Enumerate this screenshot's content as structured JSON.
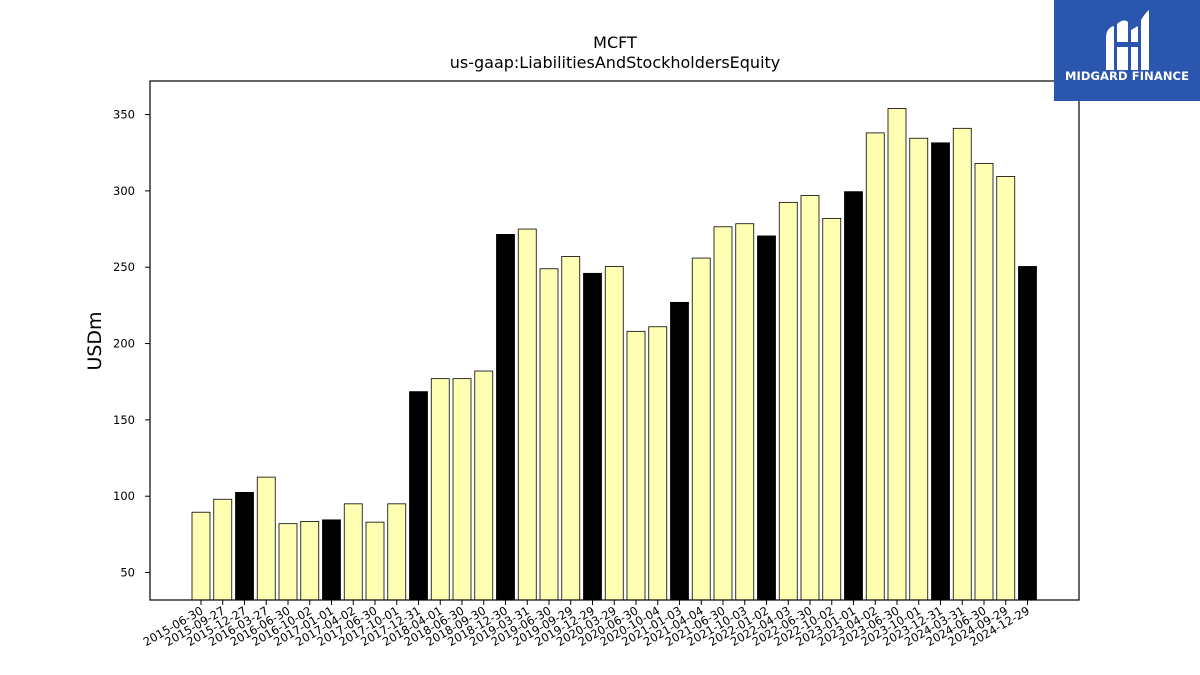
{
  "chart_data": {
    "type": "bar",
    "title": "MCFT",
    "subtitle": "us-gaap:LiabilitiesAndStockholdersEquity",
    "xlabel": "",
    "ylabel": "USDm",
    "ylim": [
      32,
      372
    ],
    "yticks": [
      50,
      100,
      150,
      200,
      250,
      300,
      350
    ],
    "grid": false,
    "colors": {
      "quarter": "#ffffb3",
      "year_end": "#000000",
      "edge": "#000000"
    },
    "categories": [
      "2015-06-30",
      "2015-09-27",
      "2015-12-27",
      "2016-03-27",
      "2016-06-30",
      "2016-10-02",
      "2017-01-01",
      "2017-04-02",
      "2017-06-30",
      "2017-10-01",
      "2017-12-31",
      "2018-04-01",
      "2018-06-30",
      "2018-09-30",
      "2018-12-30",
      "2019-03-31",
      "2019-06-30",
      "2019-09-29",
      "2019-12-29",
      "2020-03-29",
      "2020-06-30",
      "2020-10-04",
      "2021-01-03",
      "2021-04-04",
      "2021-06-30",
      "2021-10-03",
      "2022-01-02",
      "2022-04-03",
      "2022-06-30",
      "2022-10-02",
      "2023-01-01",
      "2023-04-02",
      "2023-06-30",
      "2023-10-01",
      "2023-12-31",
      "2024-03-31",
      "2024-06-30",
      "2024-09-29",
      "2024-12-29"
    ],
    "values": [
      89.5,
      98,
      102.5,
      112.5,
      82,
      83.5,
      84.5,
      95,
      83,
      95,
      168.5,
      177,
      177,
      182,
      271.5,
      275,
      249,
      257,
      246,
      250.5,
      208,
      211,
      227,
      256,
      276.5,
      278.5,
      270.5,
      292.5,
      297,
      282,
      299.5,
      338,
      354,
      334.5,
      331.5,
      341,
      318,
      309.5,
      250.5
    ],
    "highlight": [
      false,
      false,
      true,
      false,
      false,
      false,
      true,
      false,
      false,
      false,
      true,
      false,
      false,
      false,
      true,
      false,
      false,
      false,
      true,
      false,
      false,
      false,
      true,
      false,
      false,
      false,
      true,
      false,
      false,
      false,
      true,
      false,
      false,
      false,
      true,
      false,
      false,
      false,
      true
    ]
  },
  "logo": {
    "text": "MIDGARD FINANCE",
    "icon": "midgard-mh-monogram-icon"
  }
}
